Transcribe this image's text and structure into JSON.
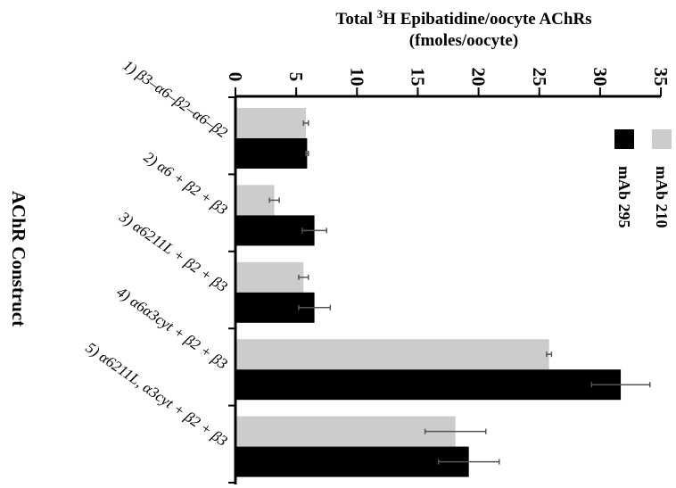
{
  "chart_data": {
    "type": "bar",
    "orientation": "horizontal",
    "title_line1_prefix": "Total ",
    "title_sup": "3",
    "title_line1_suffix": "H Epibatidine/oocyte AChRs",
    "title_line2": "(fmoles/oocyte)",
    "ylabel": "AChR Construct",
    "xlim": [
      0,
      35
    ],
    "ticks": [
      0,
      5,
      10,
      15,
      20,
      25,
      30,
      35
    ],
    "categories": [
      "1) β3–α6–β2–α6–β2",
      "2) α6 + β2 + β3",
      "3) α6211L + β2 + β3",
      "4) α6α3cyt + β2 + β3",
      "5) α6211L, α3cyt + β2 + β3"
    ],
    "series": [
      {
        "name": "mAb 210",
        "color": "#cccccc",
        "values": [
          5.8,
          3.2,
          5.6,
          25.8,
          18.1
        ],
        "errors": [
          0.2,
          0.4,
          0.4,
          0.2,
          2.5
        ]
      },
      {
        "name": "mAb 295",
        "color": "#000000",
        "values": [
          5.9,
          6.5,
          6.5,
          31.7,
          19.2
        ],
        "errors": [
          0.1,
          1.0,
          1.3,
          2.4,
          2.5
        ]
      }
    ],
    "legend_position": "top-right"
  }
}
